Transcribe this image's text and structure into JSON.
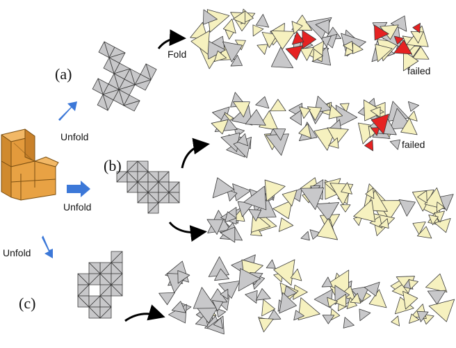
{
  "labels": {
    "a": "(a)",
    "b": "(b)",
    "c": "(c)"
  },
  "actions": {
    "unfold_1": "Unfold",
    "unfold_2": "Unfold",
    "unfold_3": "Unfold",
    "fold": "Fold"
  },
  "status": {
    "failed_1": "failed",
    "failed_2": "failed"
  },
  "colors": {
    "net_fill": "#c8c8ca",
    "net_edge": "#3a3a3a",
    "folded_face": "#f6f1bf",
    "failure_highlight": "#e62222",
    "solid_orange": "#e8a244",
    "unfold_arrow": "#3c78d8",
    "process_arrow": "#000000"
  },
  "icons": {
    "unfold_arrow": "blue-arrow-icon",
    "process_arrow": "black-curved-arrow-icon",
    "source_solid": "l-shaped-cube-icon"
  }
}
